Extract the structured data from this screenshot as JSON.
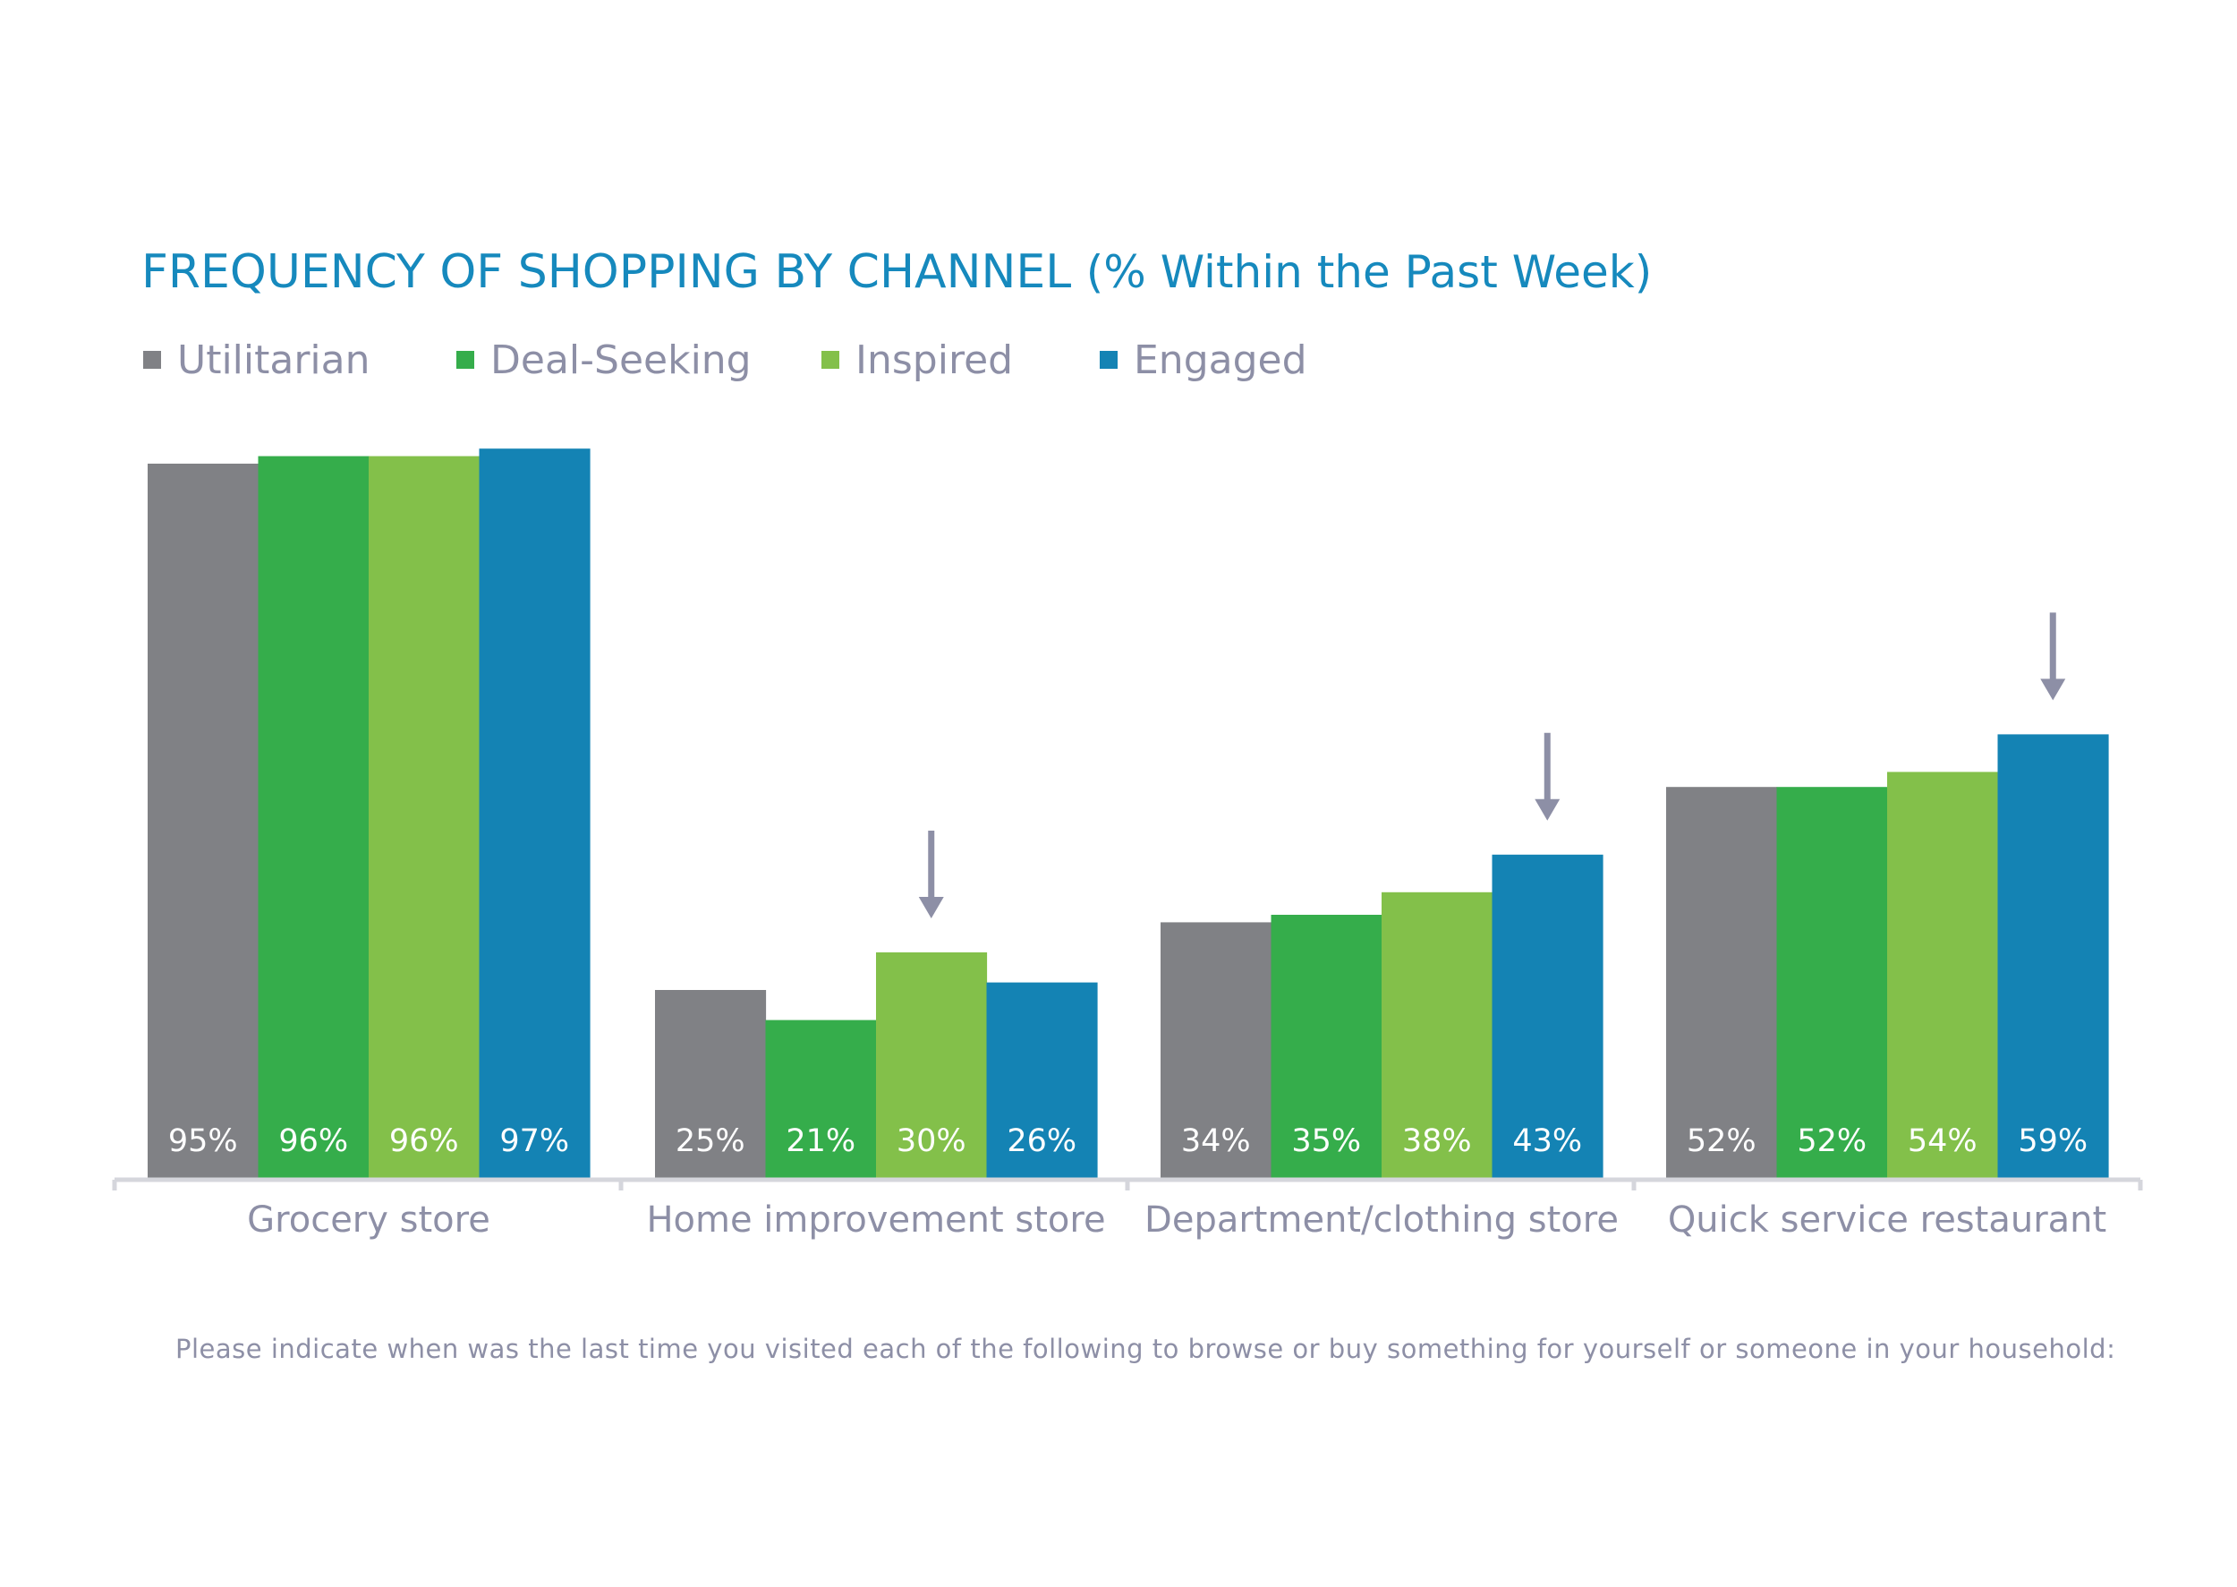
{
  "colors": {
    "title": "#1689bd",
    "muted_text": "#8d8fa6",
    "axis": "#d5d6dc",
    "arrow": "#8d8fa6",
    "value_label": "#ffffff"
  },
  "chart_data": {
    "type": "bar",
    "title": "FREQUENCY OF SHOPPING BY CHANNEL",
    "subtitle": "(% Within the Past Week)",
    "categories": [
      "Grocery store",
      "Home improvement store",
      "Department/clothing store",
      "Quick service restaurant"
    ],
    "series": [
      {
        "name": "Utilitarian",
        "color": "#808185",
        "values": [
          95,
          25,
          34,
          52
        ],
        "labels": [
          "95%",
          "25%",
          "34%",
          "52%"
        ]
      },
      {
        "name": "Deal-Seeking",
        "color": "#35ad4b",
        "values": [
          96,
          21,
          35,
          52
        ],
        "labels": [
          "96%",
          "21%",
          "35%",
          "52%"
        ]
      },
      {
        "name": "Inspired",
        "color": "#83c04a",
        "values": [
          96,
          30,
          38,
          54
        ],
        "labels": [
          "96%",
          "30%",
          "38%",
          "54%"
        ]
      },
      {
        "name": "Engaged",
        "color": "#1483b4",
        "values": [
          97,
          26,
          43,
          59
        ],
        "labels": [
          "97%",
          "26%",
          "43%",
          "59%"
        ]
      }
    ],
    "highlight_arrows": [
      {
        "category": "Home improvement store",
        "series": "Inspired"
      },
      {
        "category": "Department/clothing store",
        "series": "Engaged"
      },
      {
        "category": "Quick service restaurant",
        "series": "Engaged"
      }
    ],
    "ylim": [
      0,
      100
    ],
    "grid": false,
    "legend_position": "top-left"
  },
  "footnote": "Please indicate when was the last time you visited each of the following to browse or buy something for yourself or someone in your household:"
}
